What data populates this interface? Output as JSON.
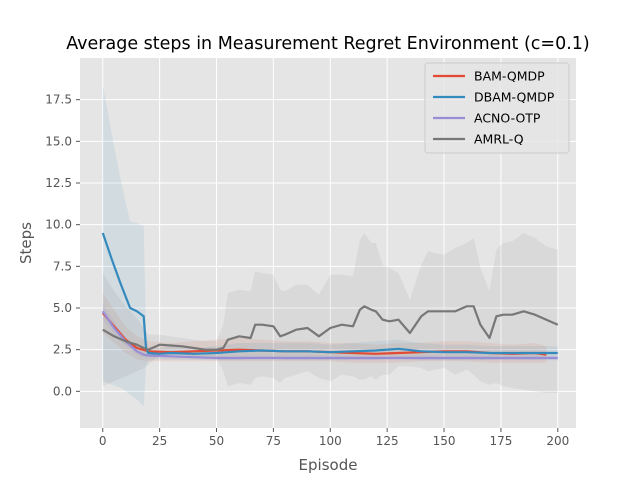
{
  "chart_data": {
    "type": "line",
    "title": "Average steps in Measurement Regret Environment (c=0.1)",
    "xlabel": "Episode",
    "ylabel": "Steps",
    "xlim": [
      -10,
      208
    ],
    "ylim": [
      -2.2,
      20.0
    ],
    "xticks": [
      0,
      25,
      50,
      75,
      100,
      125,
      150,
      175,
      200
    ],
    "yticks": [
      0.0,
      2.5,
      5.0,
      7.5,
      10.0,
      12.5,
      15.0,
      17.5
    ],
    "ytick_labels": [
      "0.0",
      "2.5",
      "5.0",
      "7.5",
      "10.0",
      "12.5",
      "15.0",
      "17.5"
    ],
    "grid": true,
    "legend": "top-right",
    "series": [
      {
        "name": "BAM-QMDP",
        "color": "#E24A33",
        "x": [
          0,
          5,
          10,
          15,
          20,
          30,
          40,
          50,
          60,
          70,
          80,
          90,
          100,
          110,
          120,
          130,
          140,
          150,
          160,
          170,
          180,
          190,
          195
        ],
        "y": [
          4.7,
          3.9,
          3.1,
          2.6,
          2.4,
          2.35,
          2.4,
          2.45,
          2.5,
          2.45,
          2.4,
          2.4,
          2.35,
          2.3,
          2.25,
          2.3,
          2.35,
          2.4,
          2.4,
          2.3,
          2.25,
          2.3,
          2.2
        ],
        "band_lower": [
          3.5,
          2.9,
          2.3,
          1.9,
          1.8,
          1.8,
          1.8,
          1.8,
          1.8,
          1.8,
          1.8,
          1.8,
          1.8,
          1.7,
          1.7,
          1.7,
          1.8,
          1.8,
          1.8,
          1.7,
          1.7,
          1.7,
          1.7
        ],
        "band_upper": [
          5.9,
          4.9,
          3.9,
          3.3,
          3.0,
          2.9,
          3.0,
          3.1,
          3.2,
          3.1,
          3.0,
          3.0,
          2.9,
          2.9,
          2.8,
          2.9,
          2.9,
          3.0,
          3.0,
          2.9,
          2.8,
          2.9,
          2.7
        ]
      },
      {
        "name": "DBAM-QMDP",
        "color": "#348ABD",
        "x": [
          0,
          4,
          8,
          12,
          15,
          18,
          19,
          20,
          25,
          30,
          40,
          50,
          60,
          70,
          80,
          90,
          100,
          110,
          120,
          130,
          140,
          150,
          160,
          170,
          180,
          190,
          200
        ],
        "y": [
          9.5,
          7.9,
          6.4,
          5.0,
          4.8,
          4.5,
          2.6,
          2.3,
          2.25,
          2.3,
          2.25,
          2.3,
          2.4,
          2.45,
          2.4,
          2.4,
          2.35,
          2.4,
          2.45,
          2.55,
          2.4,
          2.35,
          2.35,
          2.3,
          2.3,
          2.3,
          2.3
        ],
        "band_lower": [
          0.6,
          0.4,
          0.2,
          -0.2,
          -0.5,
          -0.9,
          1.5,
          1.9,
          1.9,
          1.9,
          1.9,
          1.9,
          1.9,
          2.0,
          1.9,
          1.9,
          1.9,
          1.9,
          1.9,
          2.0,
          1.9,
          1.9,
          1.9,
          1.9,
          1.9,
          1.9,
          1.9
        ],
        "band_upper": [
          18.4,
          15.4,
          12.6,
          10.2,
          10.1,
          9.9,
          3.7,
          2.7,
          2.6,
          2.7,
          2.6,
          2.7,
          2.9,
          2.9,
          2.9,
          2.9,
          2.8,
          2.9,
          3.0,
          3.1,
          2.9,
          2.8,
          2.8,
          2.7,
          2.7,
          2.7,
          2.7
        ]
      },
      {
        "name": "ACNO-OTP",
        "color": "#988ED5",
        "x": [
          0,
          5,
          10,
          15,
          18,
          20,
          30,
          40,
          50,
          75,
          100,
          125,
          150,
          175,
          200
        ],
        "y": [
          4.8,
          3.8,
          3.0,
          2.4,
          2.2,
          2.15,
          2.1,
          2.05,
          2.0,
          2.0,
          2.0,
          2.0,
          2.0,
          2.0,
          2.0
        ],
        "band_lower": [
          4.3,
          3.4,
          2.7,
          2.2,
          2.05,
          2.0,
          1.95,
          1.9,
          1.85,
          1.85,
          1.85,
          1.85,
          1.85,
          1.85,
          1.85
        ],
        "band_upper": [
          5.3,
          4.2,
          3.3,
          2.6,
          2.35,
          2.3,
          2.25,
          2.2,
          2.15,
          2.15,
          2.15,
          2.15,
          2.15,
          2.15,
          2.15
        ]
      },
      {
        "name": "AMRL-Q",
        "color": "#777777",
        "x": [
          0,
          5,
          10,
          15,
          18,
          20,
          25,
          30,
          35,
          40,
          45,
          50,
          53,
          55,
          60,
          65,
          67,
          70,
          75,
          78,
          80,
          85,
          90,
          95,
          100,
          105,
          110,
          113,
          115,
          118,
          120,
          123,
          126,
          130,
          135,
          140,
          143,
          146,
          150,
          155,
          160,
          163,
          166,
          170,
          173,
          176,
          180,
          185,
          190,
          195,
          200
        ],
        "y": [
          3.7,
          3.3,
          3.0,
          2.8,
          2.6,
          2.5,
          2.8,
          2.75,
          2.7,
          2.6,
          2.5,
          2.5,
          2.6,
          3.1,
          3.3,
          3.2,
          4.0,
          4.0,
          3.9,
          3.3,
          3.4,
          3.7,
          3.8,
          3.3,
          3.8,
          4.0,
          3.9,
          4.9,
          5.1,
          4.9,
          4.8,
          4.3,
          4.2,
          4.3,
          3.5,
          4.5,
          4.8,
          4.8,
          4.8,
          4.8,
          5.1,
          5.1,
          4.0,
          3.2,
          4.5,
          4.6,
          4.6,
          4.8,
          4.6,
          4.3,
          4.0
        ],
        "band_lower": [
          0.3,
          0.6,
          0.9,
          1.2,
          1.4,
          1.6,
          2.2,
          2.2,
          2.2,
          2.1,
          2.0,
          2.0,
          1.2,
          0.3,
          0.5,
          0.4,
          0.8,
          0.9,
          0.8,
          0.5,
          0.8,
          1.0,
          1.2,
          0.8,
          0.6,
          1.0,
          0.9,
          0.7,
          0.7,
          0.9,
          0.7,
          1.0,
          1.0,
          1.5,
          1.5,
          1.4,
          1.2,
          1.3,
          1.4,
          1.0,
          1.3,
          1.0,
          0.6,
          0.4,
          0.5,
          0.3,
          0.2,
          0.1,
          0.0,
          -0.1,
          -0.1
        ],
        "band_upper": [
          7.1,
          6.0,
          5.1,
          4.4,
          3.8,
          3.4,
          3.4,
          3.3,
          3.2,
          3.1,
          3.0,
          3.0,
          4.0,
          5.9,
          6.1,
          6.0,
          7.2,
          7.1,
          7.0,
          6.1,
          6.0,
          6.4,
          6.4,
          5.8,
          7.0,
          7.0,
          6.9,
          9.1,
          9.5,
          8.9,
          8.9,
          7.6,
          7.4,
          7.1,
          5.5,
          7.6,
          8.4,
          8.3,
          8.2,
          8.6,
          8.9,
          9.2,
          7.4,
          6.0,
          8.5,
          8.9,
          9.0,
          9.5,
          9.2,
          8.7,
          8.5
        ]
      }
    ]
  }
}
